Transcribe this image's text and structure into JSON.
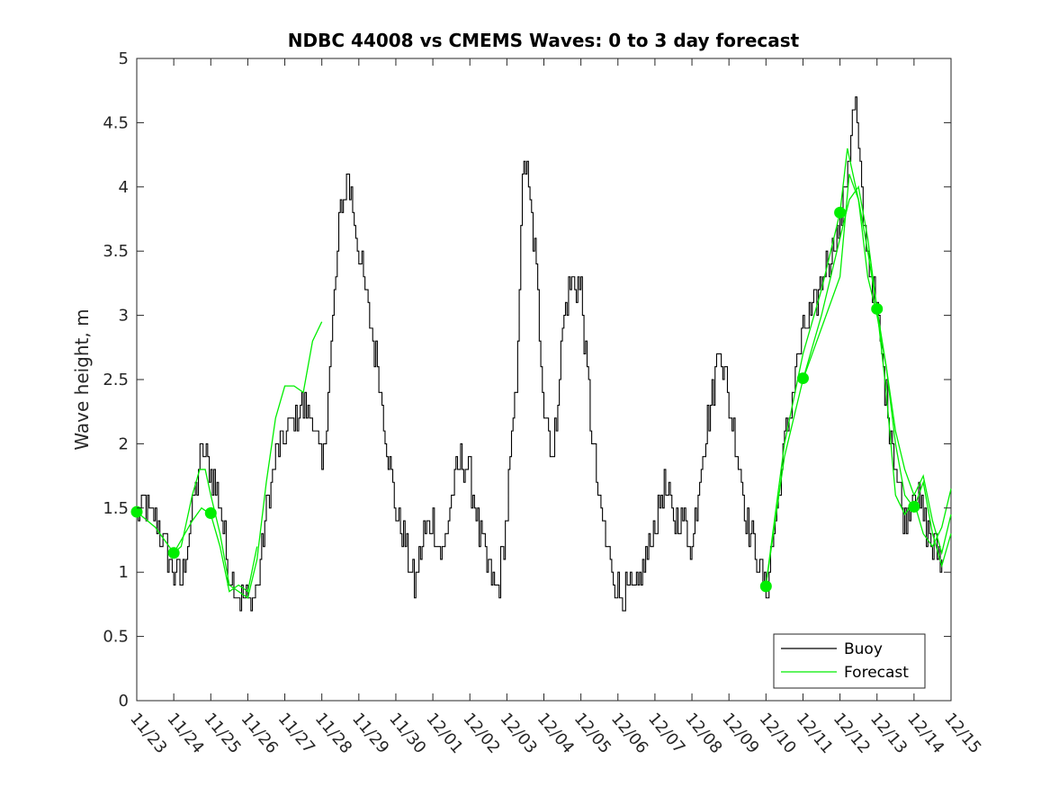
{
  "chart_data": {
    "type": "line",
    "title": "NDBC 44008 vs CMEMS Waves: 0 to 3 day forecast",
    "xlabel": "",
    "ylabel": "Wave height, m",
    "xlim": [
      0,
      22
    ],
    "ylim": [
      0,
      5
    ],
    "grid": false,
    "legend_position": "bottom-right",
    "categories": [
      "11/23",
      "11/24",
      "11/25",
      "11/26",
      "11/27",
      "11/28",
      "11/29",
      "11/30",
      "12/01",
      "12/02",
      "12/03",
      "12/04",
      "12/05",
      "12/06",
      "12/07",
      "12/08",
      "12/09",
      "12/10",
      "12/11",
      "12/12",
      "12/13",
      "12/14",
      "12/15"
    ],
    "yticks": [
      "0",
      "0.5",
      "1",
      "1.5",
      "2",
      "2.5",
      "3",
      "3.5",
      "4",
      "4.5",
      "5"
    ],
    "colors": {
      "buoy": "#000000",
      "forecast": "#00ee00",
      "marker": "#00ee00"
    },
    "series": [
      {
        "name": "Buoy",
        "points": [
          [
            0,
            1.5
          ],
          [
            0.25,
            1.5
          ],
          [
            0.5,
            1.4
          ],
          [
            0.75,
            1.2
          ],
          [
            1,
            1.0
          ],
          [
            1.2,
            0.95
          ],
          [
            1.5,
            1.5
          ],
          [
            1.75,
            1.95
          ],
          [
            2,
            1.8
          ],
          [
            2.25,
            1.5
          ],
          [
            2.5,
            1.0
          ],
          [
            2.75,
            0.85
          ],
          [
            3,
            0.75
          ],
          [
            3.25,
            0.9
          ],
          [
            3.5,
            1.5
          ],
          [
            3.75,
            1.9
          ],
          [
            4,
            2.05
          ],
          [
            4.25,
            2.2
          ],
          [
            4.5,
            2.3
          ],
          [
            4.75,
            2.2
          ],
          [
            5,
            1.75
          ],
          [
            5.25,
            2.8
          ],
          [
            5.5,
            3.8
          ],
          [
            5.7,
            4.1
          ],
          [
            6,
            3.5
          ],
          [
            6.25,
            3.0
          ],
          [
            6.5,
            2.6
          ],
          [
            6.75,
            2.0
          ],
          [
            7,
            1.5
          ],
          [
            7.25,
            1.2
          ],
          [
            7.5,
            0.9
          ],
          [
            7.75,
            1.3
          ],
          [
            8,
            1.4
          ],
          [
            8.25,
            1.1
          ],
          [
            8.5,
            1.6
          ],
          [
            8.75,
            1.9
          ],
          [
            9,
            1.75
          ],
          [
            9.25,
            1.3
          ],
          [
            9.5,
            1.0
          ],
          [
            9.75,
            0.85
          ],
          [
            10,
            1.5
          ],
          [
            10.25,
            2.5
          ],
          [
            10.45,
            4.3
          ],
          [
            10.75,
            3.5
          ],
          [
            11,
            2.3
          ],
          [
            11.25,
            1.9
          ],
          [
            11.5,
            2.9
          ],
          [
            11.75,
            3.3
          ],
          [
            12,
            3.2
          ],
          [
            12.25,
            2.2
          ],
          [
            12.5,
            1.5
          ],
          [
            12.75,
            1.1
          ],
          [
            13,
            0.85
          ],
          [
            13.25,
            0.85
          ],
          [
            13.5,
            0.85
          ],
          [
            13.75,
            1.1
          ],
          [
            14,
            1.4
          ],
          [
            14.25,
            1.7
          ],
          [
            14.5,
            1.4
          ],
          [
            14.75,
            1.4
          ],
          [
            15,
            1.2
          ],
          [
            15.25,
            1.9
          ],
          [
            15.5,
            2.3
          ],
          [
            15.75,
            2.8
          ],
          [
            16,
            2.3
          ],
          [
            16.25,
            1.9
          ],
          [
            16.5,
            1.4
          ],
          [
            16.75,
            1.1
          ],
          [
            17,
            0.85
          ],
          [
            17.25,
            1.4
          ],
          [
            17.5,
            2.0
          ],
          [
            17.75,
            2.5
          ],
          [
            18,
            2.9
          ],
          [
            18.25,
            3.0
          ],
          [
            18.5,
            3.3
          ],
          [
            18.75,
            3.5
          ],
          [
            19,
            3.7
          ],
          [
            19.25,
            4.3
          ],
          [
            19.4,
            4.7
          ],
          [
            19.6,
            3.8
          ],
          [
            19.9,
            3.2
          ],
          [
            20.2,
            2.5
          ],
          [
            20.5,
            1.8
          ],
          [
            20.75,
            1.35
          ],
          [
            21,
            1.7
          ],
          [
            21.25,
            1.4
          ],
          [
            21.5,
            1.2
          ],
          [
            21.75,
            1.1
          ]
        ]
      },
      {
        "name": "Forecast",
        "segments": [
          [
            [
              0,
              1.47
            ],
            [
              0.5,
              1.35
            ],
            [
              1,
              1.15
            ],
            [
              1.2,
              1.2
            ],
            [
              1.5,
              1.6
            ],
            [
              1.7,
              1.8
            ],
            [
              1.85,
              1.8
            ],
            [
              2,
              1.6
            ],
            [
              2.25,
              1.3
            ],
            [
              2.5,
              0.9
            ],
            [
              2.75,
              0.85
            ],
            [
              3,
              0.8
            ],
            [
              3.25,
              1.1
            ],
            [
              3.5,
              1.7
            ],
            [
              3.75,
              2.2
            ],
            [
              4,
              2.45
            ],
            [
              4.25,
              2.45
            ],
            [
              4.5,
              2.4
            ],
            [
              4.75,
              2.8
            ],
            [
              5,
              2.95
            ]
          ],
          [
            [
              1,
              1.15
            ],
            [
              1.5,
              1.4
            ],
            [
              1.75,
              1.5
            ],
            [
              2,
              1.45
            ],
            [
              2.25,
              1.2
            ],
            [
              2.5,
              0.85
            ],
            [
              2.75,
              0.9
            ],
            [
              3,
              0.85
            ],
            [
              3.25,
              1.2
            ]
          ],
          [
            [
              17,
              0.9
            ],
            [
              17.5,
              1.9
            ],
            [
              18,
              2.5
            ],
            [
              18.5,
              2.9
            ],
            [
              19,
              3.3
            ],
            [
              19.25,
              4.1
            ],
            [
              19.5,
              3.9
            ],
            [
              19.75,
              3.5
            ],
            [
              20,
              3.05
            ],
            [
              20.25,
              2.4
            ],
            [
              20.5,
              1.6
            ],
            [
              20.75,
              1.45
            ],
            [
              21,
              1.55
            ],
            [
              21.25,
              1.3
            ],
            [
              21.5,
              1.2
            ],
            [
              21.75,
              1.35
            ],
            [
              22,
              1.65
            ]
          ],
          [
            [
              17,
              0.9
            ],
            [
              17.5,
              2.0
            ],
            [
              18,
              2.7
            ],
            [
              18.5,
              3.2
            ],
            [
              19,
              3.8
            ],
            [
              19.2,
              4.3
            ],
            [
              19.5,
              3.9
            ],
            [
              19.75,
              3.3
            ],
            [
              20,
              3.0
            ],
            [
              20.25,
              2.6
            ],
            [
              20.5,
              2.0
            ],
            [
              20.75,
              1.6
            ],
            [
              21,
              1.5
            ],
            [
              21.25,
              1.7
            ],
            [
              21.5,
              1.3
            ],
            [
              21.75,
              1.05
            ],
            [
              22,
              1.3
            ]
          ],
          [
            [
              18,
              2.5
            ],
            [
              18.5,
              3.0
            ],
            [
              19,
              3.6
            ],
            [
              19.25,
              3.9
            ],
            [
              19.5,
              4.0
            ],
            [
              19.75,
              3.6
            ],
            [
              20,
              3.05
            ],
            [
              20.25,
              2.6
            ],
            [
              20.5,
              2.1
            ],
            [
              20.75,
              1.8
            ],
            [
              21,
              1.6
            ],
            [
              21.25,
              1.75
            ],
            [
              21.5,
              1.4
            ],
            [
              21.75,
              1.15
            ],
            [
              22,
              1.45
            ]
          ]
        ],
        "markers": [
          [
            0,
            1.47
          ],
          [
            1,
            1.15
          ],
          [
            2,
            1.46
          ],
          [
            17,
            0.89
          ],
          [
            18,
            2.51
          ],
          [
            19,
            3.8
          ],
          [
            20,
            3.05
          ],
          [
            21,
            1.51
          ]
        ]
      }
    ]
  }
}
